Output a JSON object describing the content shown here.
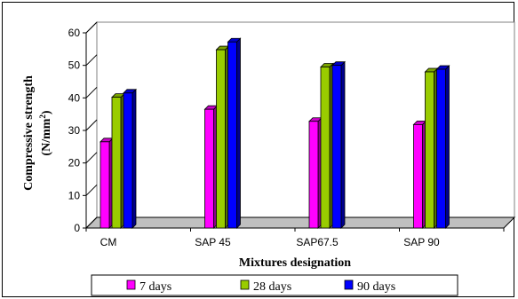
{
  "chart_data": {
    "type": "bar",
    "categories": [
      "CM",
      "SAP 45",
      "SAP67.5",
      "SAP 90"
    ],
    "series": [
      {
        "name": "7 days",
        "values": [
          26.5,
          36.5,
          32.8,
          31.8
        ],
        "color": "#ff00ff"
      },
      {
        "name": "28 days",
        "values": [
          40.2,
          54.8,
          49.5,
          48.0
        ],
        "color": "#99cc00"
      },
      {
        "name": "90 days",
        "values": [
          41.5,
          57.2,
          50.0,
          48.8
        ],
        "color": "#0000ff"
      }
    ],
    "ylabel_line1": "Compressive strength",
    "ylabel_line2": "(N/mm",
    "ylabel_sup": "2",
    "ylabel_close": ")",
    "xlabel": "Mixtures designation",
    "ylim": [
      0,
      60
    ],
    "yticks": [
      0,
      10,
      20,
      30,
      40,
      50,
      60
    ],
    "grid": false,
    "legend_position": "bottom",
    "style": "3d-clustered-column"
  }
}
